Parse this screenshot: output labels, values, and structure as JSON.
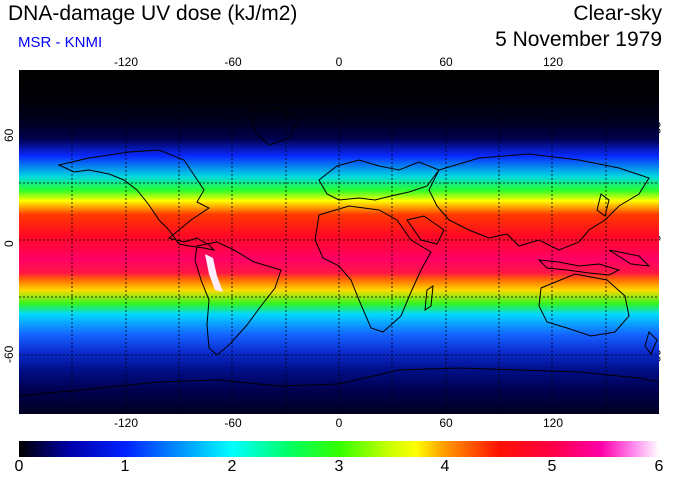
{
  "header": {
    "title": "DNA-damage UV dose (kJ/m2)",
    "subtitle": "MSR - KNMI",
    "condition": "Clear-sky",
    "date": "5 November 1979",
    "subtitle_color": "#0000ff"
  },
  "map": {
    "lon_ticks": [
      "-120",
      "-60",
      "0",
      "60",
      "120"
    ],
    "lat_ticks": [
      "60",
      "0",
      "-60"
    ]
  },
  "colorbar": {
    "labels": [
      "0",
      "1",
      "2",
      "3",
      "4",
      "5",
      "6"
    ],
    "min": 0,
    "max": 6,
    "unit": "kJ/m2"
  }
}
